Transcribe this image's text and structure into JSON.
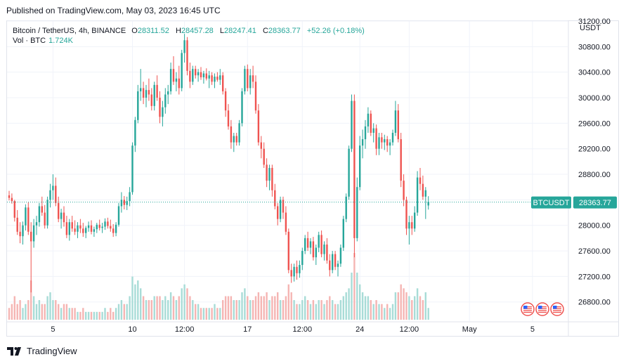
{
  "published": "Published on TradingView.com, May 03, 2023 16:45 UTC",
  "header": {
    "symbol": "Bitcoin / TetherUS, 4h, BINANCE",
    "o_label": "O",
    "o_value": "28311.52",
    "h_label": "H",
    "h_value": "28457.28",
    "l_label": "L",
    "l_value": "28247.41",
    "c_label": "C",
    "c_value": "28363.77",
    "change": "+52.26 (+0.18%)",
    "vol_label": "Vol · BTC",
    "vol_value": "1.724K",
    "currency": "USDT"
  },
  "footer": {
    "brand": "TradingView"
  },
  "colors": {
    "up": "#26a69a",
    "down": "#ef5350",
    "vol_up": "#a8dcd7",
    "vol_down": "#f5b5b3"
  },
  "chart_data": {
    "type": "candlestick",
    "symbol": "BTCUSDT",
    "interval": "4h",
    "ylim": [
      26500,
      31200
    ],
    "y_ticks": [
      31200,
      30800,
      30400,
      30000,
      29600,
      29200,
      28800,
      28400,
      28000,
      27600,
      27200,
      26800
    ],
    "y_tick_labels": [
      "31200.00",
      "30800.00",
      "30400.00",
      "30000.00",
      "29600.00",
      "29200.00",
      "28800.00",
      "",
      "28000.00",
      "27600.00",
      "27200.00",
      "26800.00"
    ],
    "x_ticks": [
      {
        "label": "5",
        "index": 16
      },
      {
        "label": "10",
        "index": 45
      },
      {
        "label": "12:00",
        "index": 64
      },
      {
        "label": "17",
        "index": 87
      },
      {
        "label": "12:00",
        "index": 107
      },
      {
        "label": "24",
        "index": 128
      },
      {
        "label": "12:00",
        "index": 146
      },
      {
        "label": "May",
        "index": 168
      },
      {
        "label": "5",
        "index": 191
      }
    ],
    "last_price": 28363.77,
    "last_label": "BTCUSDT",
    "last_value_label": "28363.77",
    "candles": [
      {
        "o": 28470,
        "h": 28540,
        "l": 28390,
        "c": 28430,
        "v": 3
      },
      {
        "o": 28430,
        "h": 28500,
        "l": 28340,
        "c": 28380,
        "v": 4
      },
      {
        "o": 28380,
        "h": 28400,
        "l": 28060,
        "c": 28120,
        "v": 6
      },
      {
        "o": 28120,
        "h": 28240,
        "l": 27850,
        "c": 27900,
        "v": 4
      },
      {
        "o": 27900,
        "h": 28050,
        "l": 27720,
        "c": 27830,
        "v": 5
      },
      {
        "o": 27830,
        "h": 28060,
        "l": 27700,
        "c": 28000,
        "v": 3
      },
      {
        "o": 28000,
        "h": 28330,
        "l": 27920,
        "c": 28280,
        "v": 4
      },
      {
        "o": 28280,
        "h": 28360,
        "l": 27850,
        "c": 27900,
        "v": 5
      },
      {
        "o": 27900,
        "h": 28050,
        "l": 26950,
        "c": 27750,
        "v": 10
      },
      {
        "o": 27750,
        "h": 28100,
        "l": 27650,
        "c": 28000,
        "v": 6
      },
      {
        "o": 28000,
        "h": 28150,
        "l": 27850,
        "c": 28050,
        "v": 4
      },
      {
        "o": 28050,
        "h": 28350,
        "l": 27980,
        "c": 28300,
        "v": 5
      },
      {
        "o": 28300,
        "h": 28450,
        "l": 28150,
        "c": 28200,
        "v": 4
      },
      {
        "o": 28200,
        "h": 28320,
        "l": 27950,
        "c": 28000,
        "v": 4
      },
      {
        "o": 28000,
        "h": 28450,
        "l": 27950,
        "c": 28400,
        "v": 6
      },
      {
        "o": 28400,
        "h": 28650,
        "l": 28280,
        "c": 28550,
        "v": 7
      },
      {
        "o": 28550,
        "h": 28800,
        "l": 28400,
        "c": 28620,
        "v": 5
      },
      {
        "o": 28620,
        "h": 28750,
        "l": 28300,
        "c": 28350,
        "v": 5
      },
      {
        "o": 28350,
        "h": 28450,
        "l": 28050,
        "c": 28100,
        "v": 4
      },
      {
        "o": 28100,
        "h": 28260,
        "l": 27950,
        "c": 28200,
        "v": 3
      },
      {
        "o": 28200,
        "h": 28300,
        "l": 27980,
        "c": 28050,
        "v": 4
      },
      {
        "o": 28050,
        "h": 28150,
        "l": 27800,
        "c": 27850,
        "v": 4
      },
      {
        "o": 27850,
        "h": 28100,
        "l": 27760,
        "c": 28050,
        "v": 3
      },
      {
        "o": 28050,
        "h": 28150,
        "l": 27900,
        "c": 27950,
        "v": 3
      },
      {
        "o": 27950,
        "h": 28080,
        "l": 27850,
        "c": 27900,
        "v": 3
      },
      {
        "o": 27900,
        "h": 28050,
        "l": 27800,
        "c": 28000,
        "v": 2
      },
      {
        "o": 28000,
        "h": 28100,
        "l": 27880,
        "c": 27950,
        "v": 2
      },
      {
        "o": 27950,
        "h": 28040,
        "l": 27820,
        "c": 27880,
        "v": 3
      },
      {
        "o": 27880,
        "h": 27990,
        "l": 27800,
        "c": 27960,
        "v": 2
      },
      {
        "o": 27960,
        "h": 28060,
        "l": 27900,
        "c": 28000,
        "v": 2
      },
      {
        "o": 28000,
        "h": 28080,
        "l": 27860,
        "c": 27900,
        "v": 2
      },
      {
        "o": 27900,
        "h": 27980,
        "l": 27820,
        "c": 27940,
        "v": 2
      },
      {
        "o": 27940,
        "h": 28040,
        "l": 27880,
        "c": 28010,
        "v": 2
      },
      {
        "o": 28010,
        "h": 28090,
        "l": 27920,
        "c": 27960,
        "v": 2
      },
      {
        "o": 27960,
        "h": 28040,
        "l": 27880,
        "c": 27980,
        "v": 2
      },
      {
        "o": 27980,
        "h": 28110,
        "l": 27930,
        "c": 28060,
        "v": 3
      },
      {
        "o": 28060,
        "h": 28120,
        "l": 27950,
        "c": 27990,
        "v": 2
      },
      {
        "o": 27990,
        "h": 28090,
        "l": 27900,
        "c": 27950,
        "v": 3
      },
      {
        "o": 27950,
        "h": 28020,
        "l": 27820,
        "c": 27880,
        "v": 2
      },
      {
        "o": 27880,
        "h": 28050,
        "l": 27830,
        "c": 28010,
        "v": 3
      },
      {
        "o": 28010,
        "h": 28350,
        "l": 27980,
        "c": 28300,
        "v": 4
      },
      {
        "o": 28300,
        "h": 28520,
        "l": 28200,
        "c": 28400,
        "v": 5
      },
      {
        "o": 28400,
        "h": 28460,
        "l": 28250,
        "c": 28320,
        "v": 4
      },
      {
        "o": 28320,
        "h": 28450,
        "l": 28240,
        "c": 28380,
        "v": 4
      },
      {
        "o": 28380,
        "h": 28600,
        "l": 28300,
        "c": 28520,
        "v": 6
      },
      {
        "o": 28520,
        "h": 29300,
        "l": 28480,
        "c": 29250,
        "v": 11
      },
      {
        "o": 29250,
        "h": 29700,
        "l": 29150,
        "c": 29650,
        "v": 9
      },
      {
        "o": 29650,
        "h": 30200,
        "l": 29600,
        "c": 30100,
        "v": 10
      },
      {
        "o": 30100,
        "h": 30450,
        "l": 29950,
        "c": 30150,
        "v": 8
      },
      {
        "o": 30150,
        "h": 30250,
        "l": 29900,
        "c": 30000,
        "v": 6
      },
      {
        "o": 30000,
        "h": 30200,
        "l": 29850,
        "c": 30120,
        "v": 5
      },
      {
        "o": 30120,
        "h": 30300,
        "l": 29950,
        "c": 30050,
        "v": 5
      },
      {
        "o": 30050,
        "h": 30150,
        "l": 29800,
        "c": 29870,
        "v": 5
      },
      {
        "o": 29870,
        "h": 30250,
        "l": 29800,
        "c": 30200,
        "v": 6
      },
      {
        "o": 30200,
        "h": 30350,
        "l": 29950,
        "c": 30000,
        "v": 6
      },
      {
        "o": 30000,
        "h": 30100,
        "l": 29600,
        "c": 29700,
        "v": 6
      },
      {
        "o": 29700,
        "h": 29950,
        "l": 29550,
        "c": 29850,
        "v": 5
      },
      {
        "o": 29850,
        "h": 30150,
        "l": 29750,
        "c": 30050,
        "v": 6
      },
      {
        "o": 30050,
        "h": 30200,
        "l": 29900,
        "c": 30100,
        "v": 5
      },
      {
        "o": 30100,
        "h": 30550,
        "l": 30050,
        "c": 30450,
        "v": 7
      },
      {
        "o": 30450,
        "h": 30650,
        "l": 30200,
        "c": 30250,
        "v": 6
      },
      {
        "o": 30250,
        "h": 30400,
        "l": 30100,
        "c": 30300,
        "v": 5
      },
      {
        "o": 30300,
        "h": 30500,
        "l": 30050,
        "c": 30150,
        "v": 6
      },
      {
        "o": 30150,
        "h": 30750,
        "l": 30100,
        "c": 30700,
        "v": 8
      },
      {
        "o": 30700,
        "h": 31000,
        "l": 30550,
        "c": 30900,
        "v": 9
      },
      {
        "o": 30900,
        "h": 30950,
        "l": 30350,
        "c": 30420,
        "v": 8
      },
      {
        "o": 30420,
        "h": 30550,
        "l": 30150,
        "c": 30250,
        "v": 6
      },
      {
        "o": 30250,
        "h": 30500,
        "l": 30200,
        "c": 30450,
        "v": 5
      },
      {
        "o": 30450,
        "h": 30500,
        "l": 30300,
        "c": 30350,
        "v": 4
      },
      {
        "o": 30350,
        "h": 30450,
        "l": 30250,
        "c": 30400,
        "v": 4
      },
      {
        "o": 30400,
        "h": 30480,
        "l": 30280,
        "c": 30320,
        "v": 3
      },
      {
        "o": 30320,
        "h": 30420,
        "l": 30220,
        "c": 30380,
        "v": 3
      },
      {
        "o": 30380,
        "h": 30460,
        "l": 30270,
        "c": 30300,
        "v": 3
      },
      {
        "o": 30300,
        "h": 30420,
        "l": 30150,
        "c": 30350,
        "v": 3
      },
      {
        "o": 30350,
        "h": 30400,
        "l": 30200,
        "c": 30250,
        "v": 3
      },
      {
        "o": 30250,
        "h": 30380,
        "l": 30150,
        "c": 30330,
        "v": 4
      },
      {
        "o": 30330,
        "h": 30400,
        "l": 30250,
        "c": 30280,
        "v": 3
      },
      {
        "o": 30280,
        "h": 30450,
        "l": 30200,
        "c": 30350,
        "v": 3
      },
      {
        "o": 30350,
        "h": 30400,
        "l": 30050,
        "c": 30100,
        "v": 5
      },
      {
        "o": 30100,
        "h": 30150,
        "l": 29700,
        "c": 29800,
        "v": 6
      },
      {
        "o": 29800,
        "h": 29900,
        "l": 29500,
        "c": 29550,
        "v": 6
      },
      {
        "o": 29550,
        "h": 29650,
        "l": 29200,
        "c": 29300,
        "v": 6
      },
      {
        "o": 29300,
        "h": 29450,
        "l": 29150,
        "c": 29400,
        "v": 5
      },
      {
        "o": 29400,
        "h": 29450,
        "l": 29250,
        "c": 29300,
        "v": 5
      },
      {
        "o": 29300,
        "h": 29650,
        "l": 29250,
        "c": 29600,
        "v": 5
      },
      {
        "o": 29600,
        "h": 30150,
        "l": 29550,
        "c": 30100,
        "v": 7
      },
      {
        "o": 30100,
        "h": 30500,
        "l": 30050,
        "c": 30450,
        "v": 8
      },
      {
        "o": 30450,
        "h": 30520,
        "l": 30100,
        "c": 30150,
        "v": 6
      },
      {
        "o": 30150,
        "h": 30450,
        "l": 30050,
        "c": 30350,
        "v": 5
      },
      {
        "o": 30350,
        "h": 30500,
        "l": 30150,
        "c": 30250,
        "v": 5
      },
      {
        "o": 30250,
        "h": 30350,
        "l": 29750,
        "c": 29800,
        "v": 6
      },
      {
        "o": 29800,
        "h": 29900,
        "l": 29250,
        "c": 29300,
        "v": 7
      },
      {
        "o": 29300,
        "h": 29400,
        "l": 29050,
        "c": 29200,
        "v": 6
      },
      {
        "o": 29200,
        "h": 29300,
        "l": 28900,
        "c": 28950,
        "v": 6
      },
      {
        "o": 28950,
        "h": 29050,
        "l": 28600,
        "c": 28700,
        "v": 7
      },
      {
        "o": 28700,
        "h": 28950,
        "l": 28550,
        "c": 28900,
        "v": 5
      },
      {
        "o": 28900,
        "h": 28950,
        "l": 28450,
        "c": 28550,
        "v": 6
      },
      {
        "o": 28550,
        "h": 28650,
        "l": 28250,
        "c": 28300,
        "v": 6
      },
      {
        "o": 28300,
        "h": 28350,
        "l": 28000,
        "c": 28100,
        "v": 7
      },
      {
        "o": 28100,
        "h": 28450,
        "l": 28050,
        "c": 28400,
        "v": 5
      },
      {
        "o": 28400,
        "h": 28450,
        "l": 28100,
        "c": 28200,
        "v": 5
      },
      {
        "o": 28200,
        "h": 28300,
        "l": 27850,
        "c": 27900,
        "v": 6
      },
      {
        "o": 27900,
        "h": 27950,
        "l": 27250,
        "c": 27300,
        "v": 9
      },
      {
        "o": 27300,
        "h": 27400,
        "l": 27100,
        "c": 27200,
        "v": 7
      },
      {
        "o": 27200,
        "h": 27400,
        "l": 27120,
        "c": 27350,
        "v": 5
      },
      {
        "o": 27350,
        "h": 27450,
        "l": 27150,
        "c": 27250,
        "v": 4
      },
      {
        "o": 27250,
        "h": 27450,
        "l": 27180,
        "c": 27380,
        "v": 4
      },
      {
        "o": 27380,
        "h": 27650,
        "l": 27300,
        "c": 27600,
        "v": 5
      },
      {
        "o": 27600,
        "h": 27850,
        "l": 27550,
        "c": 27800,
        "v": 6
      },
      {
        "o": 27800,
        "h": 27900,
        "l": 27600,
        "c": 27650,
        "v": 5
      },
      {
        "o": 27650,
        "h": 27800,
        "l": 27550,
        "c": 27750,
        "v": 4
      },
      {
        "o": 27750,
        "h": 27820,
        "l": 27450,
        "c": 27500,
        "v": 5
      },
      {
        "o": 27500,
        "h": 27700,
        "l": 27380,
        "c": 27650,
        "v": 4
      },
      {
        "o": 27650,
        "h": 27900,
        "l": 27580,
        "c": 27850,
        "v": 5
      },
      {
        "o": 27850,
        "h": 27920,
        "l": 27500,
        "c": 27550,
        "v": 5
      },
      {
        "o": 27550,
        "h": 27750,
        "l": 27450,
        "c": 27700,
        "v": 4
      },
      {
        "o": 27700,
        "h": 27800,
        "l": 27400,
        "c": 27450,
        "v": 5
      },
      {
        "o": 27450,
        "h": 27550,
        "l": 27200,
        "c": 27300,
        "v": 6
      },
      {
        "o": 27300,
        "h": 27600,
        "l": 27250,
        "c": 27550,
        "v": 5
      },
      {
        "o": 27550,
        "h": 27600,
        "l": 27300,
        "c": 27350,
        "v": 4
      },
      {
        "o": 27350,
        "h": 27450,
        "l": 27200,
        "c": 27400,
        "v": 4
      },
      {
        "o": 27400,
        "h": 27700,
        "l": 27350,
        "c": 27650,
        "v": 5
      },
      {
        "o": 27650,
        "h": 28150,
        "l": 27600,
        "c": 28100,
        "v": 6
      },
      {
        "o": 28100,
        "h": 28500,
        "l": 28050,
        "c": 28450,
        "v": 7
      },
      {
        "o": 28450,
        "h": 29250,
        "l": 28400,
        "c": 29200,
        "v": 8
      },
      {
        "o": 29200,
        "h": 30050,
        "l": 29150,
        "c": 29950,
        "v": 12
      },
      {
        "o": 29950,
        "h": 30050,
        "l": 27500,
        "c": 27800,
        "v": 17
      },
      {
        "o": 27800,
        "h": 28750,
        "l": 27750,
        "c": 28600,
        "v": 12
      },
      {
        "o": 28600,
        "h": 29400,
        "l": 28550,
        "c": 29250,
        "v": 9
      },
      {
        "o": 29250,
        "h": 29500,
        "l": 29050,
        "c": 29350,
        "v": 7
      },
      {
        "o": 29350,
        "h": 29650,
        "l": 29200,
        "c": 29550,
        "v": 6
      },
      {
        "o": 29550,
        "h": 29850,
        "l": 29450,
        "c": 29750,
        "v": 6
      },
      {
        "o": 29750,
        "h": 29800,
        "l": 29400,
        "c": 29450,
        "v": 5
      },
      {
        "o": 29450,
        "h": 29600,
        "l": 29300,
        "c": 29520,
        "v": 4
      },
      {
        "o": 29520,
        "h": 29580,
        "l": 29100,
        "c": 29200,
        "v": 5
      },
      {
        "o": 29200,
        "h": 29450,
        "l": 29100,
        "c": 29380,
        "v": 4
      },
      {
        "o": 29380,
        "h": 29450,
        "l": 29200,
        "c": 29300,
        "v": 4
      },
      {
        "o": 29300,
        "h": 29420,
        "l": 29180,
        "c": 29350,
        "v": 3
      },
      {
        "o": 29350,
        "h": 29400,
        "l": 29150,
        "c": 29250,
        "v": 4
      },
      {
        "o": 29250,
        "h": 29350,
        "l": 29100,
        "c": 29300,
        "v": 3
      },
      {
        "o": 29300,
        "h": 29500,
        "l": 29250,
        "c": 29450,
        "v": 4
      },
      {
        "o": 29450,
        "h": 29950,
        "l": 29400,
        "c": 29800,
        "v": 7
      },
      {
        "o": 29800,
        "h": 29900,
        "l": 29300,
        "c": 29350,
        "v": 7
      },
      {
        "o": 29350,
        "h": 29450,
        "l": 28600,
        "c": 28700,
        "v": 9
      },
      {
        "o": 28700,
        "h": 28800,
        "l": 28300,
        "c": 28400,
        "v": 8
      },
      {
        "o": 28400,
        "h": 28450,
        "l": 27850,
        "c": 27950,
        "v": 7
      },
      {
        "o": 27950,
        "h": 28150,
        "l": 27700,
        "c": 28050,
        "v": 6
      },
      {
        "o": 28050,
        "h": 28150,
        "l": 27850,
        "c": 27950,
        "v": 5
      },
      {
        "o": 27950,
        "h": 28300,
        "l": 27900,
        "c": 28200,
        "v": 6
      },
      {
        "o": 28200,
        "h": 28850,
        "l": 28150,
        "c": 28750,
        "v": 8
      },
      {
        "o": 28750,
        "h": 28900,
        "l": 28550,
        "c": 28650,
        "v": 6
      },
      {
        "o": 28650,
        "h": 28780,
        "l": 28400,
        "c": 28450,
        "v": 5
      },
      {
        "o": 28450,
        "h": 28600,
        "l": 28100,
        "c": 28550,
        "v": 7
      },
      {
        "o": 28311.52,
        "h": 28457.28,
        "l": 28247.41,
        "c": 28363.77,
        "v": 3
      }
    ],
    "event_icons": 3
  }
}
